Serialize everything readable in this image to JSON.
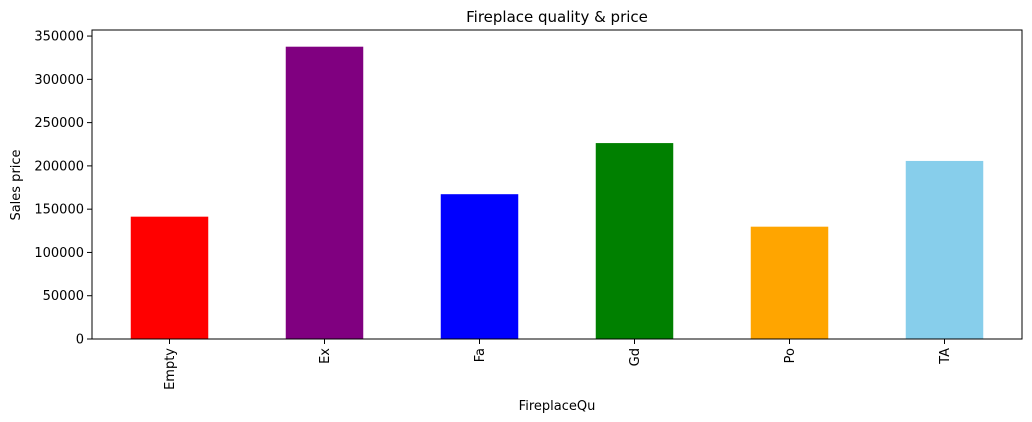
{
  "chart_data": {
    "type": "bar",
    "title": "Fireplace quality & price",
    "xlabel": "FireplaceQu",
    "ylabel": "Sales price",
    "categories": [
      "Empty",
      "Ex",
      "Fa",
      "Gd",
      "Po",
      "TA"
    ],
    "values": [
      141331,
      337712,
      167298,
      226351,
      129764,
      205723
    ],
    "colors": [
      "#ff0000",
      "#800080",
      "#0000ff",
      "#008000",
      "#ffa500",
      "#87ceeb"
    ],
    "ylim": [
      0,
      357000
    ],
    "yticks": [
      0,
      50000,
      100000,
      150000,
      200000,
      250000,
      300000,
      350000
    ],
    "ytick_labels": [
      "0",
      "50000",
      "100000",
      "150000",
      "200000",
      "250000",
      "300000",
      "350000"
    ],
    "grid": false,
    "legend": false
  }
}
